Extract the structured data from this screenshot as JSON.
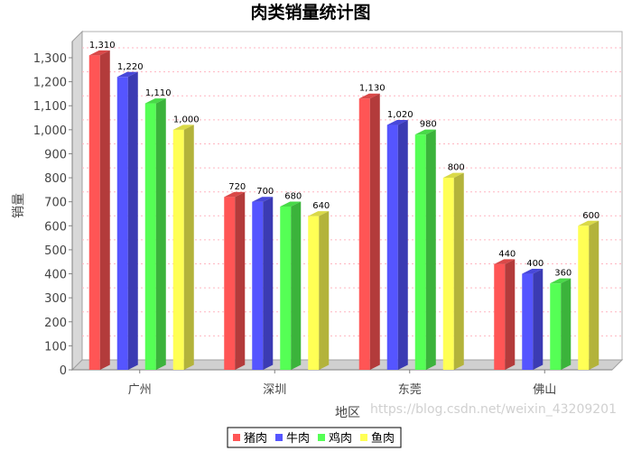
{
  "chart_data": {
    "type": "bar",
    "title": "肉类销量统计图",
    "xlabel": "地区",
    "ylabel": "销量",
    "categories": [
      "广州",
      "深圳",
      "东莞",
      "佛山"
    ],
    "series": [
      {
        "name": "猪肉",
        "color": "#ff5555",
        "values": [
          1310,
          720,
          1130,
          440
        ]
      },
      {
        "name": "牛肉",
        "color": "#5555ff",
        "values": [
          1220,
          700,
          1020,
          400
        ]
      },
      {
        "name": "鸡肉",
        "color": "#55ff55",
        "values": [
          1110,
          680,
          980,
          360
        ]
      },
      {
        "name": "鱼肉",
        "color": "#ffff55",
        "values": [
          1000,
          640,
          800,
          600
        ]
      }
    ],
    "ylim": [
      0,
      1300
    ],
    "yticks": [
      0,
      100,
      200,
      300,
      400,
      500,
      600,
      700,
      800,
      900,
      1000,
      1100,
      1200,
      1300
    ],
    "grid": true,
    "legend": "bottom-center",
    "style": "3d"
  },
  "watermark": "https://blog.csdn.net/weixin_43209201"
}
